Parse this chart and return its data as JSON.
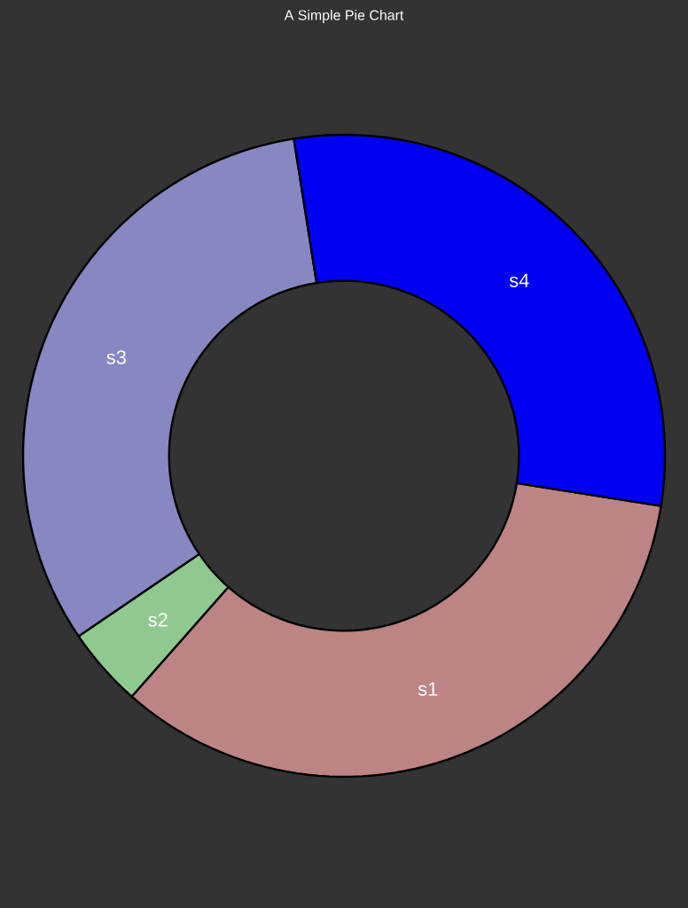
{
  "chart_data": {
    "type": "donut",
    "title": "A Simple Pie Chart",
    "categories": [
      "s1",
      "s2",
      "s3",
      "s4"
    ],
    "values": [
      34,
      4,
      32,
      30
    ],
    "colors": [
      "#bc8484",
      "#8fc98f",
      "#8787c2",
      "#0000f2"
    ]
  }
}
